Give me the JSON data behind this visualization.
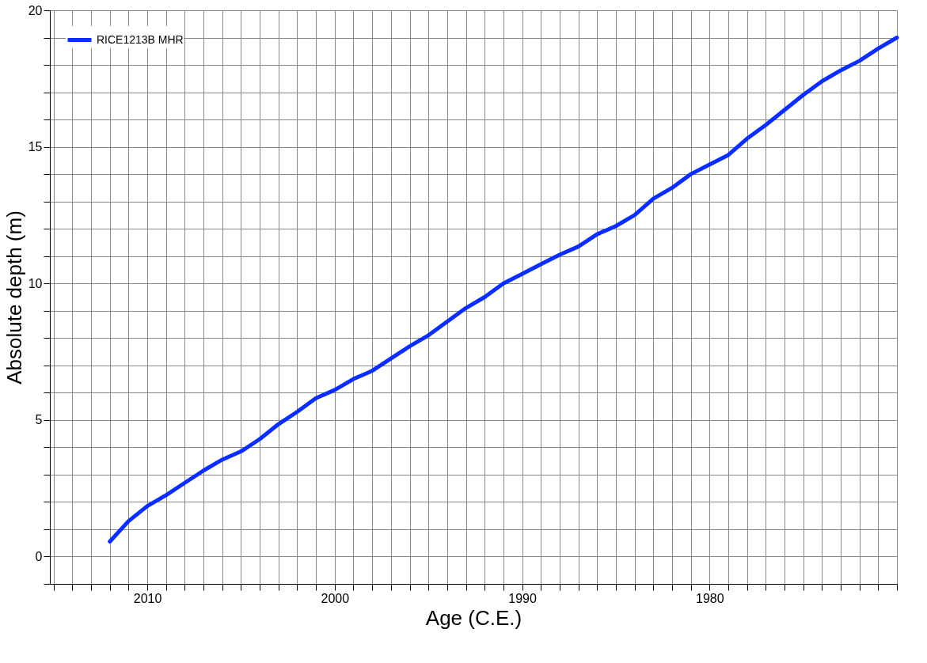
{
  "chart_data": {
    "type": "line",
    "xlabel": "Age (C.E.)",
    "ylabel": "Absolute depth (m)",
    "x": [
      2012,
      2011,
      2010,
      2009,
      2008,
      2007,
      2006,
      2005,
      2004,
      2003,
      2002,
      2001,
      2000,
      1999,
      1998,
      1997,
      1996,
      1995,
      1994,
      1993,
      1992,
      1991,
      1990,
      1989,
      1988,
      1987,
      1986,
      1985,
      1984,
      1983,
      1982,
      1981,
      1980,
      1979,
      1978,
      1977,
      1976,
      1975,
      1974,
      1973,
      1972,
      1971,
      1970
    ],
    "series": [
      {
        "name": "RICE1213B MHR",
        "color": "#0a2eff",
        "values": [
          0.55,
          1.3,
          1.85,
          2.25,
          2.7,
          3.15,
          3.55,
          3.85,
          4.3,
          4.85,
          5.3,
          5.8,
          6.1,
          6.5,
          6.8,
          7.25,
          7.7,
          8.1,
          8.6,
          9.1,
          9.5,
          10.0,
          10.35,
          10.7,
          11.05,
          11.35,
          11.8,
          12.1,
          12.5,
          13.1,
          13.5,
          14.0,
          14.35,
          14.7,
          15.3,
          15.8,
          16.35,
          16.9,
          17.4,
          17.8,
          18.15,
          18.6,
          19.0
        ]
      }
    ],
    "xlim": [
      2015.2,
      1970
    ],
    "ylim": [
      -1,
      20
    ],
    "xticks": [
      {
        "value": 2015,
        "label": null
      },
      {
        "value": 2014,
        "label": null
      },
      {
        "value": 2013,
        "label": null
      },
      {
        "value": 2012,
        "label": null
      },
      {
        "value": 2011,
        "label": null
      },
      2010,
      {
        "value": 2009,
        "label": null
      },
      {
        "value": 2008,
        "label": null
      },
      {
        "value": 2007,
        "label": null
      },
      {
        "value": 2006,
        "label": null
      },
      {
        "value": 2005,
        "label": null
      },
      {
        "value": 2004,
        "label": null
      },
      {
        "value": 2003,
        "label": null
      },
      {
        "value": 2002,
        "label": null
      },
      {
        "value": 2001,
        "label": null
      },
      2000,
      {
        "value": 1999,
        "label": null
      },
      {
        "value": 1998,
        "label": null
      },
      {
        "value": 1997,
        "label": null
      },
      {
        "value": 1996,
        "label": null
      },
      {
        "value": 1995,
        "label": null
      },
      {
        "value": 1994,
        "label": null
      },
      {
        "value": 1993,
        "label": null
      },
      {
        "value": 1992,
        "label": null
      },
      {
        "value": 1991,
        "label": null
      },
      1990,
      {
        "value": 1989,
        "label": null
      },
      {
        "value": 1988,
        "label": null
      },
      {
        "value": 1987,
        "label": null
      },
      {
        "value": 1986,
        "label": null
      },
      {
        "value": 1985,
        "label": null
      },
      {
        "value": 1984,
        "label": null
      },
      {
        "value": 1983,
        "label": null
      },
      {
        "value": 1982,
        "label": null
      },
      {
        "value": 1981,
        "label": null
      },
      1980,
      {
        "value": 1979,
        "label": null
      },
      {
        "value": 1978,
        "label": null
      },
      {
        "value": 1977,
        "label": null
      },
      {
        "value": 1976,
        "label": null
      },
      {
        "value": 1975,
        "label": null
      },
      {
        "value": 1974,
        "label": null
      },
      {
        "value": 1973,
        "label": null
      },
      {
        "value": 1972,
        "label": null
      },
      {
        "value": 1971,
        "label": null
      },
      {
        "value": 1970,
        "label": null
      }
    ],
    "yticks": [
      {
        "value": -1,
        "label": null
      },
      0,
      {
        "value": 1,
        "label": null
      },
      {
        "value": 2,
        "label": null
      },
      {
        "value": 3,
        "label": null
      },
      {
        "value": 4,
        "label": null
      },
      5,
      {
        "value": 6,
        "label": null
      },
      {
        "value": 7,
        "label": null
      },
      {
        "value": 8,
        "label": null
      },
      {
        "value": 9,
        "label": null
      },
      10,
      {
        "value": 11,
        "label": null
      },
      {
        "value": 12,
        "label": null
      },
      {
        "value": 13,
        "label": null
      },
      {
        "value": 14,
        "label": null
      },
      15,
      {
        "value": 16,
        "label": null
      },
      {
        "value": 17,
        "label": null
      },
      {
        "value": 18,
        "label": null
      },
      {
        "value": 19,
        "label": null
      },
      20
    ],
    "grid": true,
    "legend": "top left",
    "line_style": "solid",
    "marker": "none"
  }
}
